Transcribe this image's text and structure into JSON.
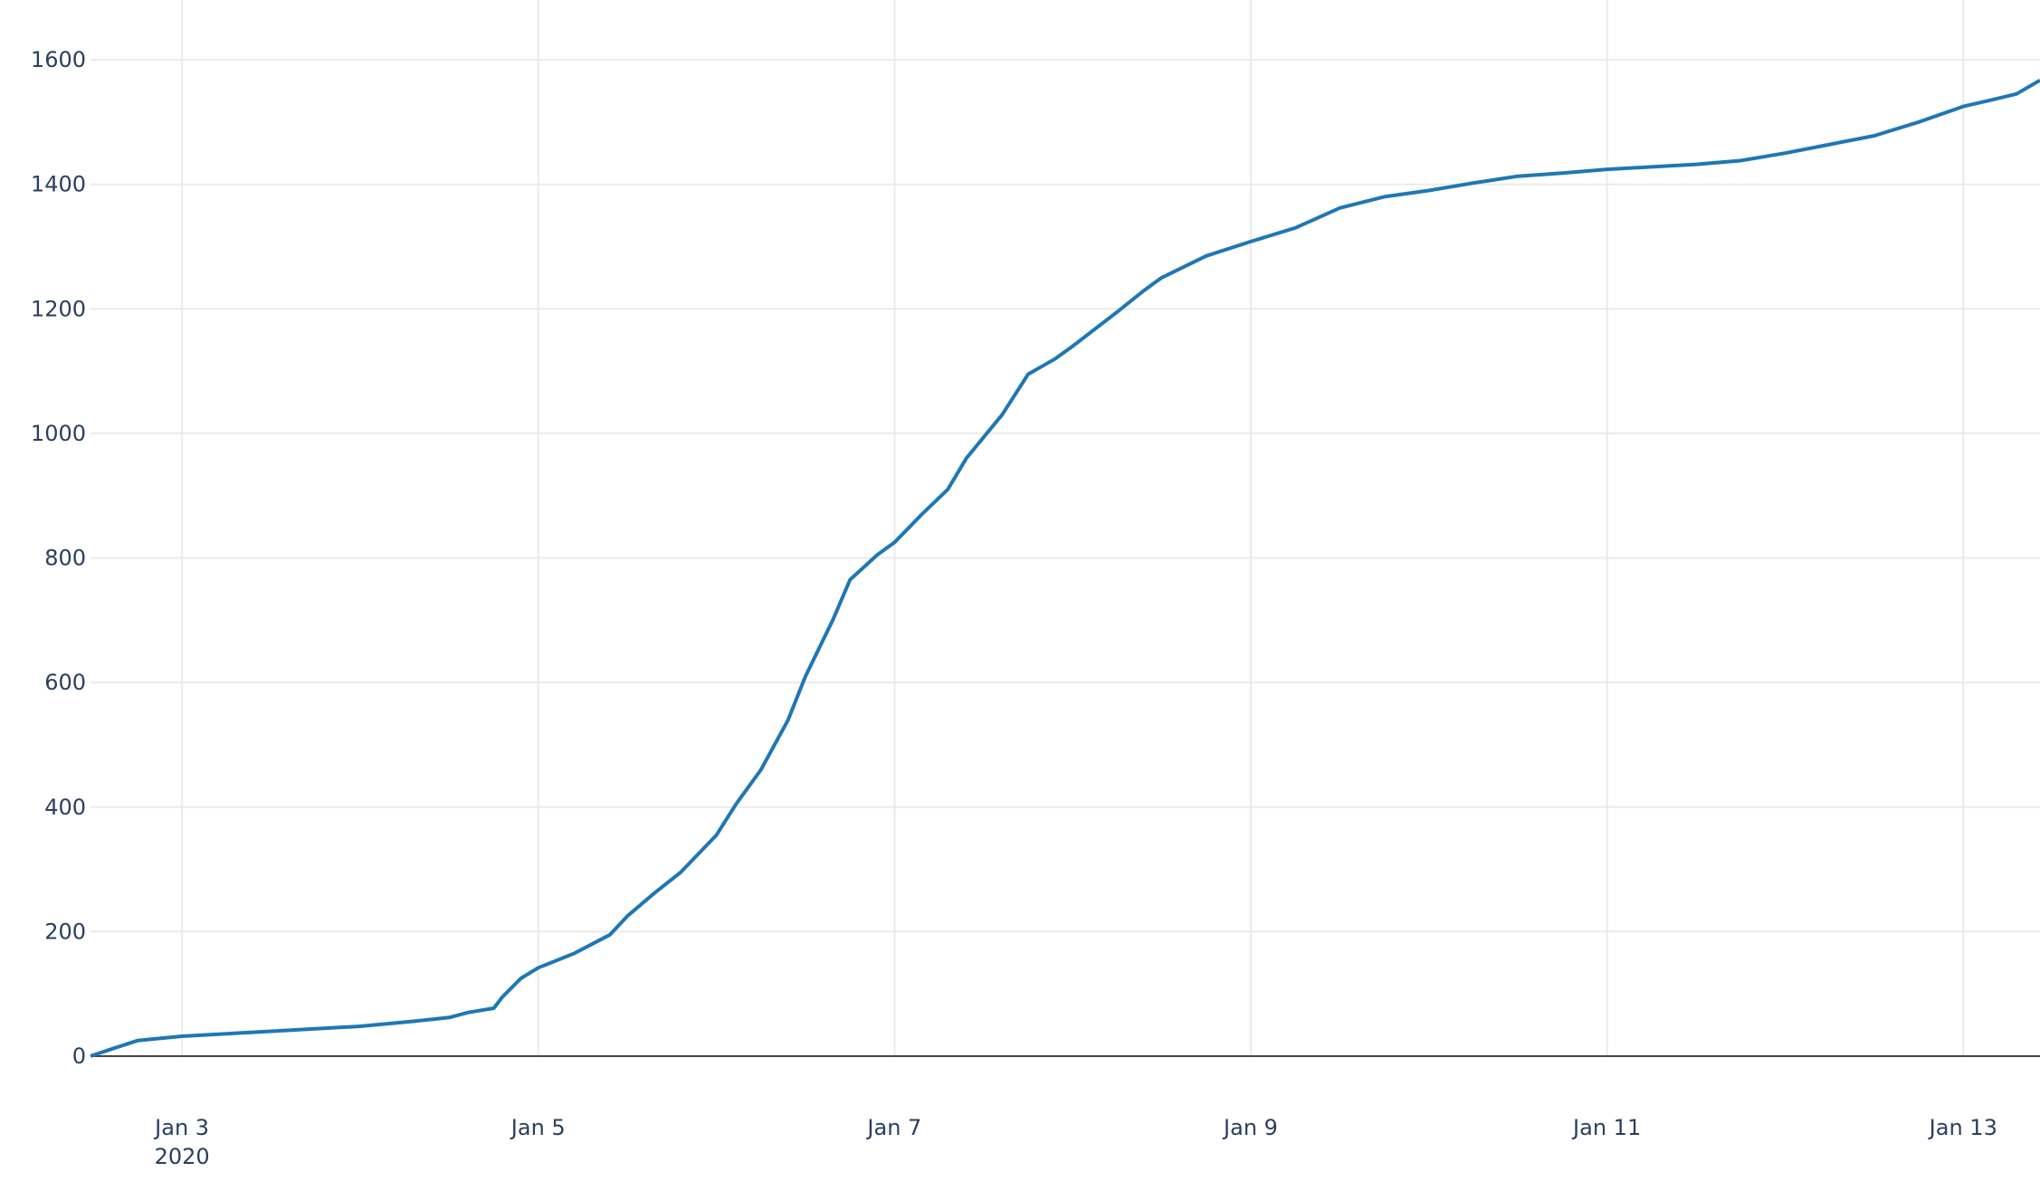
{
  "chart_data": {
    "type": "line",
    "title": "",
    "xlabel": "",
    "ylabel": "",
    "xlim": [
      "2020-01-02T11:40",
      "2020-01-13T10:20"
    ],
    "ylim": [
      0,
      1600
    ],
    "grid": true,
    "legend": "none",
    "line_color": "#1f77b4",
    "yticks": [
      0,
      200,
      400,
      600,
      800,
      1000,
      1200,
      1400,
      1600
    ],
    "ytick_labels": [
      "0",
      "200",
      "400",
      "600",
      "800",
      "1000",
      "1200",
      "1400",
      "1600"
    ],
    "xticks": [
      "2020-01-03",
      "2020-01-05",
      "2020-01-07",
      "2020-01-09",
      "2020-01-11",
      "2020-01-13"
    ],
    "xtick_labels": [
      "Jan 3",
      "Jan 5",
      "Jan 7",
      "Jan 9",
      "Jan 11",
      "Jan 13"
    ],
    "xtick_year": "2020",
    "series": [
      {
        "x": [
          "2020-01-02T11:40",
          "2020-01-02T14:40",
          "2020-01-02T18:00",
          "2020-01-03T00:00",
          "2020-01-03T12:00",
          "2020-01-04T00:00",
          "2020-01-04T07:10",
          "2020-01-04T12:00",
          "2020-01-04T14:30",
          "2020-01-04T18:00",
          "2020-01-04T19:10",
          "2020-01-04T21:40",
          "2020-01-05T00:00",
          "2020-01-05T04:50",
          "2020-01-05T09:40",
          "2020-01-05T12:00",
          "2020-01-05T15:40",
          "2020-01-05T19:10",
          "2020-01-06T00:00",
          "2020-01-06T02:40",
          "2020-01-06T06:00",
          "2020-01-06T09:40",
          "2020-01-06T12:00",
          "2020-01-06T15:40",
          "2020-01-06T18:00",
          "2020-01-06T21:40",
          "2020-01-07T00:00",
          "2020-01-07T03:40",
          "2020-01-07T07:10",
          "2020-01-07T09:40",
          "2020-01-07T14:30",
          "2020-01-07T18:00",
          "2020-01-07T21:40",
          "2020-01-08T00:00",
          "2020-01-08T06:00",
          "2020-01-08T09:40",
          "2020-01-08T12:00",
          "2020-01-08T18:00",
          "2020-01-09T00:00",
          "2020-01-09T06:00",
          "2020-01-09T12:00",
          "2020-01-09T18:00",
          "2020-01-10T00:00",
          "2020-01-10T06:00",
          "2020-01-10T12:00",
          "2020-01-10T18:00",
          "2020-01-11T00:00",
          "2020-01-11T12:00",
          "2020-01-11T18:00",
          "2020-01-12T00:00",
          "2020-01-12T06:00",
          "2020-01-12T12:00",
          "2020-01-12T18:00",
          "2020-01-13T00:00",
          "2020-01-13T03:40",
          "2020-01-13T07:10",
          "2020-01-13T10:20"
        ],
        "y": [
          0,
          12,
          25,
          32,
          40,
          48,
          56,
          62,
          70,
          77,
          95,
          125,
          142,
          165,
          195,
          225,
          262,
          295,
          355,
          405,
          460,
          540,
          610,
          700,
          765,
          805,
          825,
          870,
          910,
          960,
          1030,
          1095,
          1120,
          1140,
          1195,
          1230,
          1250,
          1285,
          1308,
          1330,
          1362,
          1380,
          1390,
          1402,
          1413,
          1418,
          1424,
          1432,
          1438,
          1450,
          1464,
          1478,
          1500,
          1525,
          1535,
          1545,
          1567
        ]
      }
    ]
  }
}
